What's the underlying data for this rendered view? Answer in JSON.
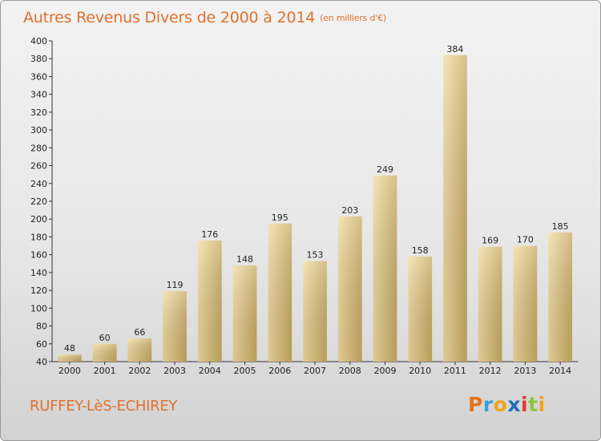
{
  "title": "Autres Revenus Divers de 2000 à 2014",
  "unit_note": "(en milliers d'€)",
  "city": "RUFFEY-LèS-ECHIREY",
  "logo": {
    "letters": [
      "P",
      "r",
      "o",
      "x",
      "i",
      "t",
      "i"
    ],
    "colors": [
      "#e8731b",
      "#3aa0d8",
      "#f2a31b",
      "#1f6fb5",
      "#e8392b",
      "#8cc63f",
      "#f2a31b"
    ]
  },
  "colors": {
    "bar_light": "#f3dca0",
    "bar_dark": "#c8aa62",
    "accent": "#e0712b"
  },
  "chart_data": {
    "type": "bar",
    "categories": [
      "2000",
      "2001",
      "2002",
      "2003",
      "2004",
      "2005",
      "2006",
      "2007",
      "2008",
      "2009",
      "2010",
      "2011",
      "2012",
      "2013",
      "2014"
    ],
    "values": [
      48,
      60,
      66,
      119,
      176,
      148,
      195,
      153,
      203,
      249,
      158,
      384,
      169,
      170,
      185
    ],
    "value_labels": [
      "48",
      "60",
      "66",
      "119",
      "176",
      "148",
      "195",
      "153",
      "203",
      "249",
      "158",
      "384",
      "169",
      "170",
      "185"
    ],
    "ylim": [
      40,
      400
    ],
    "yticks": [
      40,
      60,
      80,
      100,
      120,
      140,
      160,
      180,
      200,
      220,
      240,
      260,
      280,
      300,
      320,
      340,
      360,
      380,
      400
    ],
    "ytick_labels": [
      "40",
      "60",
      "80",
      "100",
      "120",
      "140",
      "160",
      "180",
      "200",
      "220",
      "240",
      "260",
      "280",
      "300",
      "320",
      "340",
      "360",
      "380",
      "400"
    ],
    "grid": false
  }
}
